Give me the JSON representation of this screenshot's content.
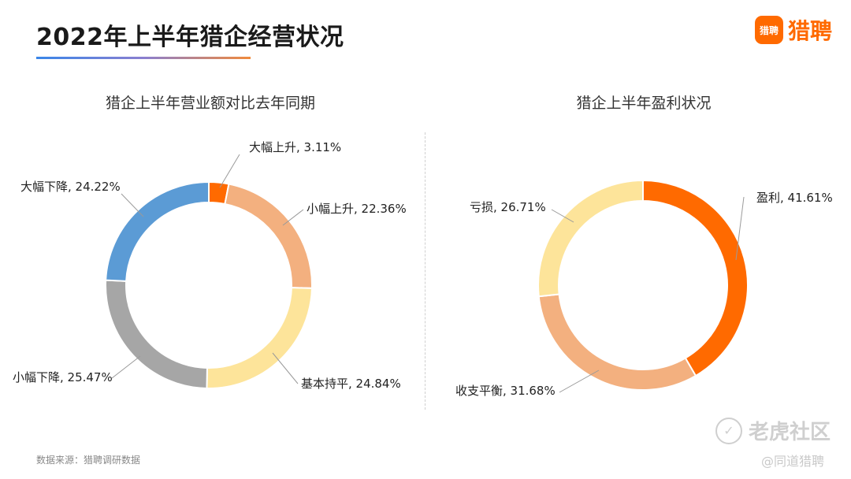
{
  "page": {
    "title": "2022年上半年猎企经营状况",
    "source": "数据来源：猎聘调研数据"
  },
  "logo": {
    "mark_text": "猎聘",
    "brand_text": "猎聘"
  },
  "watermark": {
    "main_text": "老虎社区",
    "sub_text": "@同道猎聘"
  },
  "chart_data": [
    {
      "type": "pie",
      "title": "猎企上半年营业额对比去年同期",
      "slices": [
        {
          "label": "大幅上升",
          "value": 3.11,
          "display": "大幅上升, 3.11%",
          "color": "#ff6a00"
        },
        {
          "label": "小幅上升",
          "value": 22.36,
          "display": "小幅上升, 22.36%",
          "color": "#f3b07f"
        },
        {
          "label": "基本持平",
          "value": 24.84,
          "display": "基本持平, 24.84%",
          "color": "#fde49a"
        },
        {
          "label": "小幅下降",
          "value": 25.47,
          "display": "小幅下降, 25.47%",
          "color": "#a6a6a6"
        },
        {
          "label": "大幅下降",
          "value": 24.22,
          "display": "大幅下降, 24.22%",
          "color": "#5b9bd5"
        }
      ]
    },
    {
      "type": "pie",
      "title": "猎企上半年盈利状况",
      "slices": [
        {
          "label": "盈利",
          "value": 41.61,
          "display": "盈利, 41.61%",
          "color": "#ff6a00"
        },
        {
          "label": "收支平衡",
          "value": 31.68,
          "display": "收支平衡, 31.68%",
          "color": "#f3b07f"
        },
        {
          "label": "亏损",
          "value": 26.71,
          "display": "亏损, 26.71%",
          "color": "#fde49a"
        }
      ]
    }
  ]
}
